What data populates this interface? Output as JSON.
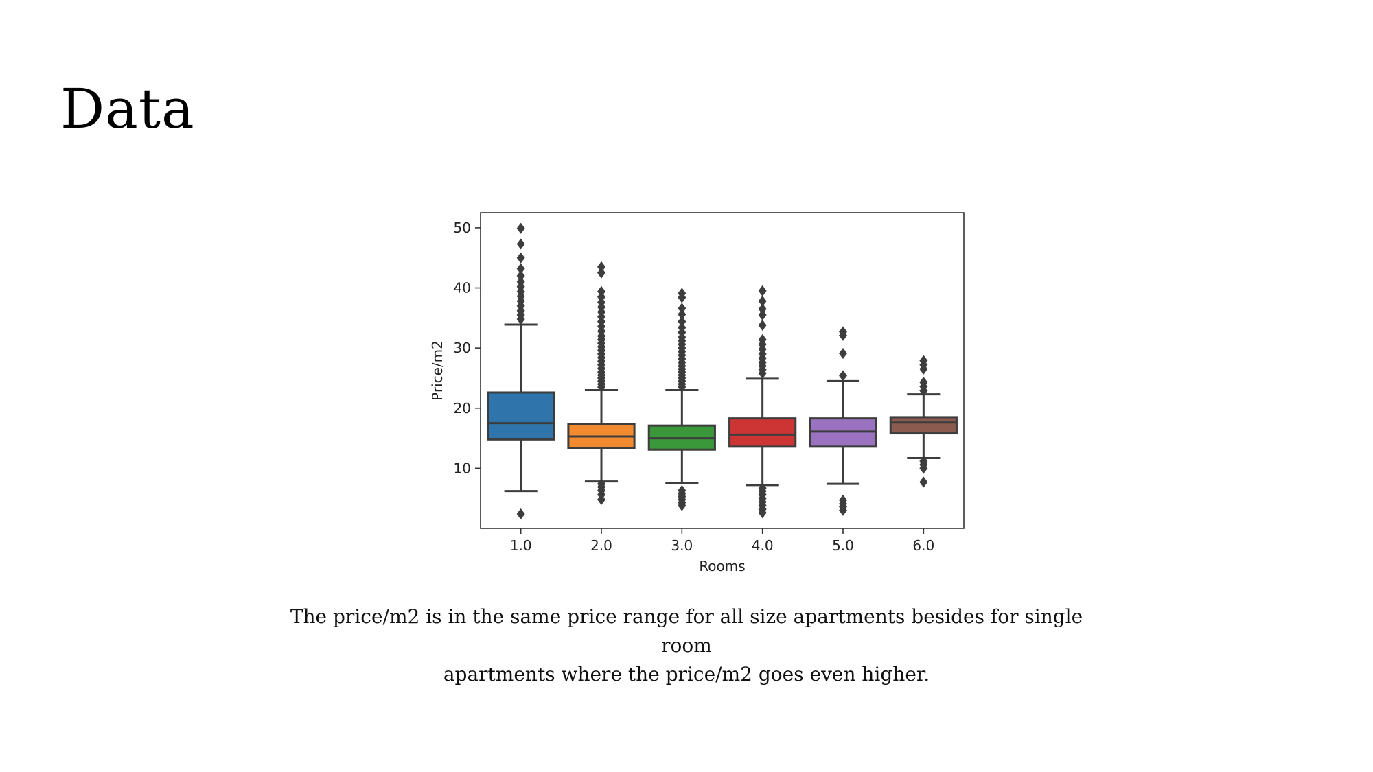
{
  "slide": {
    "title": "Data",
    "caption_line1": "The price/m2 is in the same price range for all size apartments besides for single room",
    "caption_line2": "apartments where the price/m2 goes even higher."
  },
  "chart_data": {
    "type": "box",
    "xlabel": "Rooms",
    "ylabel": "Price/m2",
    "ylim": [
      0,
      52.5
    ],
    "yticks": [
      10,
      20,
      30,
      40,
      50
    ],
    "grid": false,
    "legend": "none",
    "categories": [
      "1.0",
      "2.0",
      "3.0",
      "4.0",
      "5.0",
      "6.0"
    ],
    "boxes": [
      {
        "category": "1.0",
        "color": "#2f75ac",
        "whisker_low": 6.2,
        "q1": 14.8,
        "median": 17.5,
        "q3": 22.6,
        "whisker_high": 33.9,
        "outliers": [
          2.4,
          34.8,
          35.5,
          36.2,
          37.0,
          37.8,
          38.6,
          39.4,
          40.2,
          41.0,
          42.0,
          43.2,
          45.0,
          47.3,
          49.9
        ]
      },
      {
        "category": "2.0",
        "color": "#f28a30",
        "whisker_low": 7.8,
        "q1": 13.3,
        "median": 15.3,
        "q3": 17.3,
        "whisker_high": 23.0,
        "outliers": [
          4.8,
          5.6,
          6.3,
          6.9,
          7.4,
          23.5,
          24.0,
          24.5,
          25.0,
          25.5,
          26.0,
          26.6,
          27.2,
          27.8,
          28.4,
          29.0,
          29.6,
          30.2,
          30.8,
          31.4,
          32.0,
          32.8,
          33.6,
          34.4,
          35.2,
          36.0,
          36.8,
          37.6,
          38.5,
          39.4,
          42.5,
          43.5
        ]
      },
      {
        "category": "3.0",
        "color": "#3a983a",
        "whisker_low": 7.5,
        "q1": 13.1,
        "median": 15.0,
        "q3": 17.1,
        "whisker_high": 23.0,
        "outliers": [
          3.8,
          4.3,
          4.8,
          5.3,
          5.8,
          6.3,
          23.5,
          24.0,
          24.5,
          25.0,
          25.5,
          26.0,
          26.5,
          27.0,
          27.6,
          28.2,
          28.8,
          29.4,
          30.0,
          30.6,
          31.2,
          31.8,
          32.6,
          33.4,
          34.4,
          35.6,
          36.6,
          38.4,
          39.1
        ]
      },
      {
        "category": "4.0",
        "color": "#cd3535",
        "whisker_low": 7.2,
        "q1": 13.6,
        "median": 15.6,
        "q3": 18.3,
        "whisker_high": 24.9,
        "outliers": [
          2.6,
          3.2,
          3.8,
          4.4,
          5.0,
          5.6,
          6.2,
          6.7,
          25.8,
          26.4,
          27.0,
          27.6,
          28.3,
          29.0,
          29.8,
          30.6,
          31.4,
          33.8,
          35.5,
          36.5,
          37.8,
          39.5
        ]
      },
      {
        "category": "5.0",
        "color": "#9a72bf",
        "whisker_low": 7.4,
        "q1": 13.6,
        "median": 16.1,
        "q3": 18.3,
        "whisker_high": 24.5,
        "outliers": [
          3.0,
          3.6,
          4.1,
          4.7,
          25.4,
          29.1,
          32.1,
          32.7
        ]
      },
      {
        "category": "6.0",
        "color": "#8b5b4f",
        "whisker_low": 11.7,
        "q1": 15.8,
        "median": 17.6,
        "q3": 18.5,
        "whisker_high": 22.3,
        "outliers": [
          7.7,
          10.0,
          10.6,
          11.2,
          22.9,
          23.6,
          24.3,
          26.5,
          27.2,
          27.9
        ]
      }
    ]
  }
}
